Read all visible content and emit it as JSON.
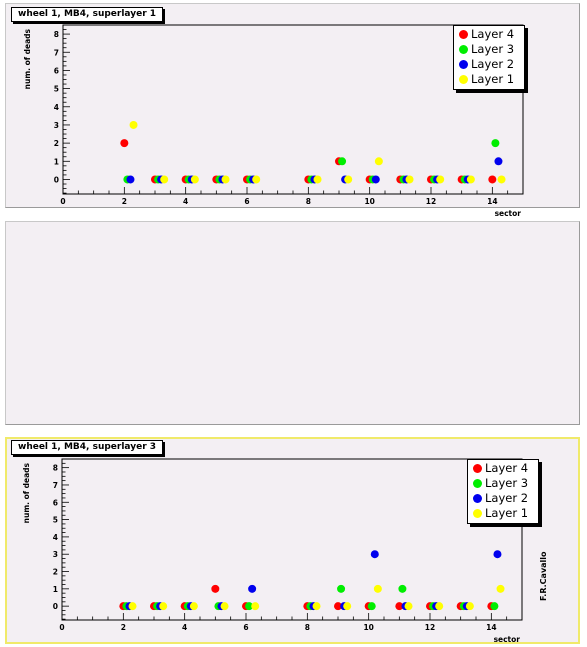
{
  "chart_data": [
    {
      "type": "scatter",
      "title": "wheel 1, MB4, superlayer 1",
      "xlabel": "sector",
      "ylabel": "num. of deads",
      "xlim": [
        0,
        15
      ],
      "ylim": [
        -0.8,
        8.5
      ],
      "x_ticks": [
        0,
        2,
        4,
        6,
        8,
        10,
        12,
        14
      ],
      "y_ticks": [
        0,
        1,
        2,
        3,
        4,
        5,
        6,
        7,
        8
      ],
      "legend_position": "top-right",
      "series": [
        {
          "name": "Layer 4",
          "color": "#ff0000",
          "x": [
            2,
            3,
            4,
            5,
            6,
            8,
            9,
            10,
            11,
            12,
            13,
            14
          ],
          "values": [
            2,
            0,
            0,
            0,
            0,
            0,
            1,
            0,
            0,
            0,
            0,
            0
          ]
        },
        {
          "name": "Layer 3",
          "color": "#00ee00",
          "x": [
            2.1,
            3.1,
            4.1,
            5.1,
            6.1,
            8.1,
            9.1,
            10.1,
            11.1,
            12.1,
            13.1,
            14.1
          ],
          "values": [
            0,
            0,
            0,
            0,
            0,
            0,
            1,
            0,
            0,
            0,
            0,
            2
          ]
        },
        {
          "name": "Layer 2",
          "color": "#0000ee",
          "x": [
            2.2,
            3.2,
            4.2,
            5.2,
            6.2,
            8.2,
            9.2,
            10.2,
            11.2,
            12.2,
            13.2,
            14.2
          ],
          "values": [
            0,
            0,
            0,
            0,
            0,
            0,
            0,
            0,
            0,
            0,
            0,
            1
          ]
        },
        {
          "name": "Layer 1",
          "color": "#ffff00",
          "x": [
            2.3,
            3.3,
            4.3,
            5.3,
            6.3,
            8.3,
            9.3,
            10.3,
            11.3,
            12.3,
            13.3,
            14.3
          ],
          "values": [
            3,
            0,
            0,
            0,
            0,
            0,
            0,
            1,
            0,
            0,
            0,
            0
          ]
        }
      ]
    },
    {
      "type": "scatter",
      "title": "wheel 1, MB4, superlayer 3",
      "xlabel": "sector",
      "ylabel": "num. of deads",
      "xlim": [
        0,
        15
      ],
      "ylim": [
        -0.8,
        8.5
      ],
      "x_ticks": [
        0,
        2,
        4,
        6,
        8,
        10,
        12,
        14
      ],
      "y_ticks": [
        0,
        1,
        2,
        3,
        4,
        5,
        6,
        7,
        8
      ],
      "legend_position": "top-right",
      "series": [
        {
          "name": "Layer 4",
          "color": "#ff0000",
          "x": [
            2,
            3,
            4,
            5,
            6,
            8,
            9,
            10,
            11,
            12,
            13,
            14
          ],
          "values": [
            0,
            0,
            0,
            1,
            0,
            0,
            0,
            0,
            0,
            0,
            0,
            0
          ]
        },
        {
          "name": "Layer 3",
          "color": "#00ee00",
          "x": [
            2.1,
            3.1,
            4.1,
            5.1,
            6.1,
            8.1,
            9.1,
            10.1,
            11.1,
            12.1,
            13.1,
            14.1
          ],
          "values": [
            0,
            0,
            0,
            0,
            0,
            0,
            1,
            0,
            1,
            0,
            0,
            0
          ]
        },
        {
          "name": "Layer 2",
          "color": "#0000ee",
          "x": [
            2.2,
            3.2,
            4.2,
            5.2,
            6.2,
            8.2,
            9.2,
            10.2,
            11.2,
            12.2,
            13.2,
            14.2
          ],
          "values": [
            0,
            0,
            0,
            0,
            1,
            0,
            0,
            3,
            0,
            0,
            0,
            3
          ]
        },
        {
          "name": "Layer 1",
          "color": "#ffff00",
          "x": [
            2.3,
            3.3,
            4.3,
            5.3,
            6.3,
            8.3,
            9.3,
            10.3,
            11.3,
            12.3,
            13.3,
            14.3
          ],
          "values": [
            0,
            0,
            0,
            0,
            0,
            0,
            0,
            1,
            0,
            0,
            0,
            1
          ]
        }
      ]
    }
  ],
  "signature": "F.R.Cavallo"
}
